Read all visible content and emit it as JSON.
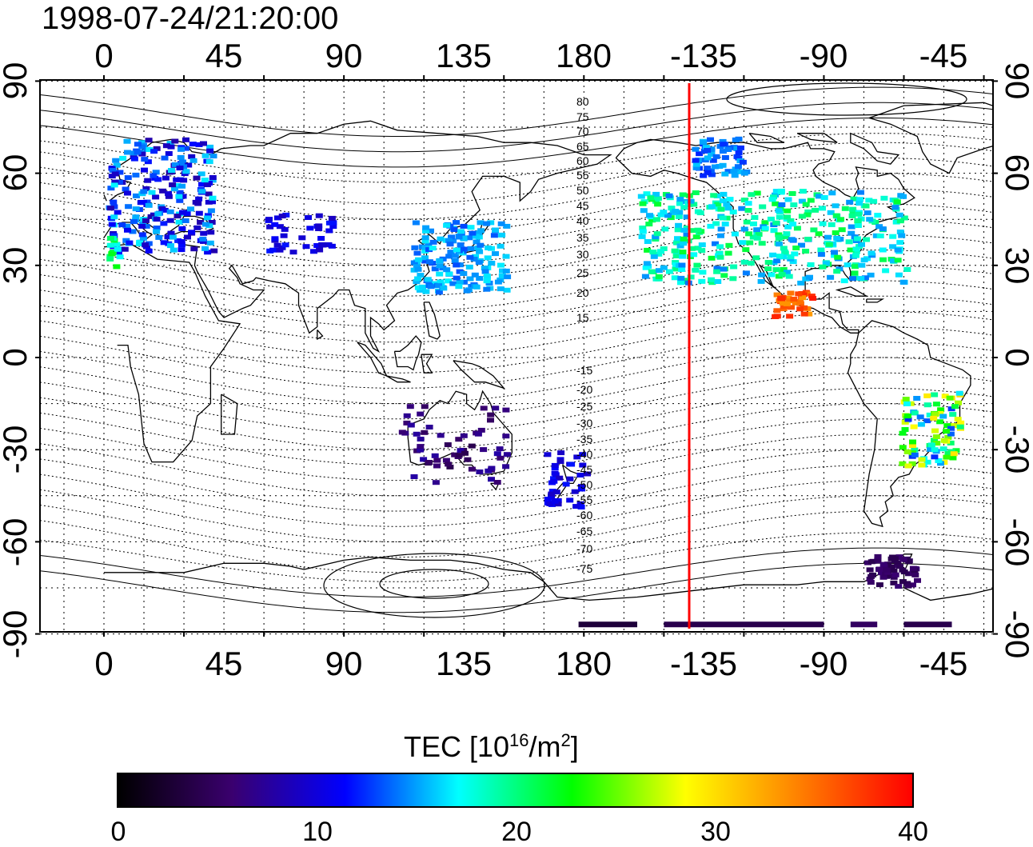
{
  "title": "1998-07-24/21:20:00",
  "map": {
    "top_lon_ticks": [
      "0",
      "45",
      "90",
      "135",
      "180",
      "-135",
      "-90",
      "-45"
    ],
    "bottom_lon_ticks": [
      "0",
      "45",
      "90",
      "135",
      "180",
      "-135",
      "-90",
      "-45"
    ],
    "left_lat_ticks": [
      "90",
      "60",
      "30",
      "0",
      "-30",
      "-60",
      "-90"
    ],
    "right_lat_ticks": [
      "90",
      "60",
      "30",
      "0",
      "-30",
      "-60",
      "-90"
    ],
    "geomag_lat_labels": [
      "80",
      "75",
      "70",
      "65",
      "60",
      "55",
      "50",
      "45",
      "40",
      "35",
      "30",
      "25",
      "20",
      "15",
      "-15",
      "-20",
      "-25",
      "-30",
      "-35",
      "-40",
      "-45",
      "-50",
      "-55",
      "-60",
      "-65",
      "-70",
      "-75"
    ],
    "terminator_color": "#ff0000"
  },
  "colorbar": {
    "title_main": "TEC  [10",
    "title_exp1": "16",
    "title_mid": "/m",
    "title_exp2": "2",
    "title_end": "]",
    "ticks": [
      "0",
      "10",
      "20",
      "30",
      "40"
    ],
    "colors": [
      "#000000",
      "#3a006e",
      "#0000ff",
      "#00ffff",
      "#00ff00",
      "#ffff00",
      "#ff8000",
      "#ff0000"
    ]
  }
}
